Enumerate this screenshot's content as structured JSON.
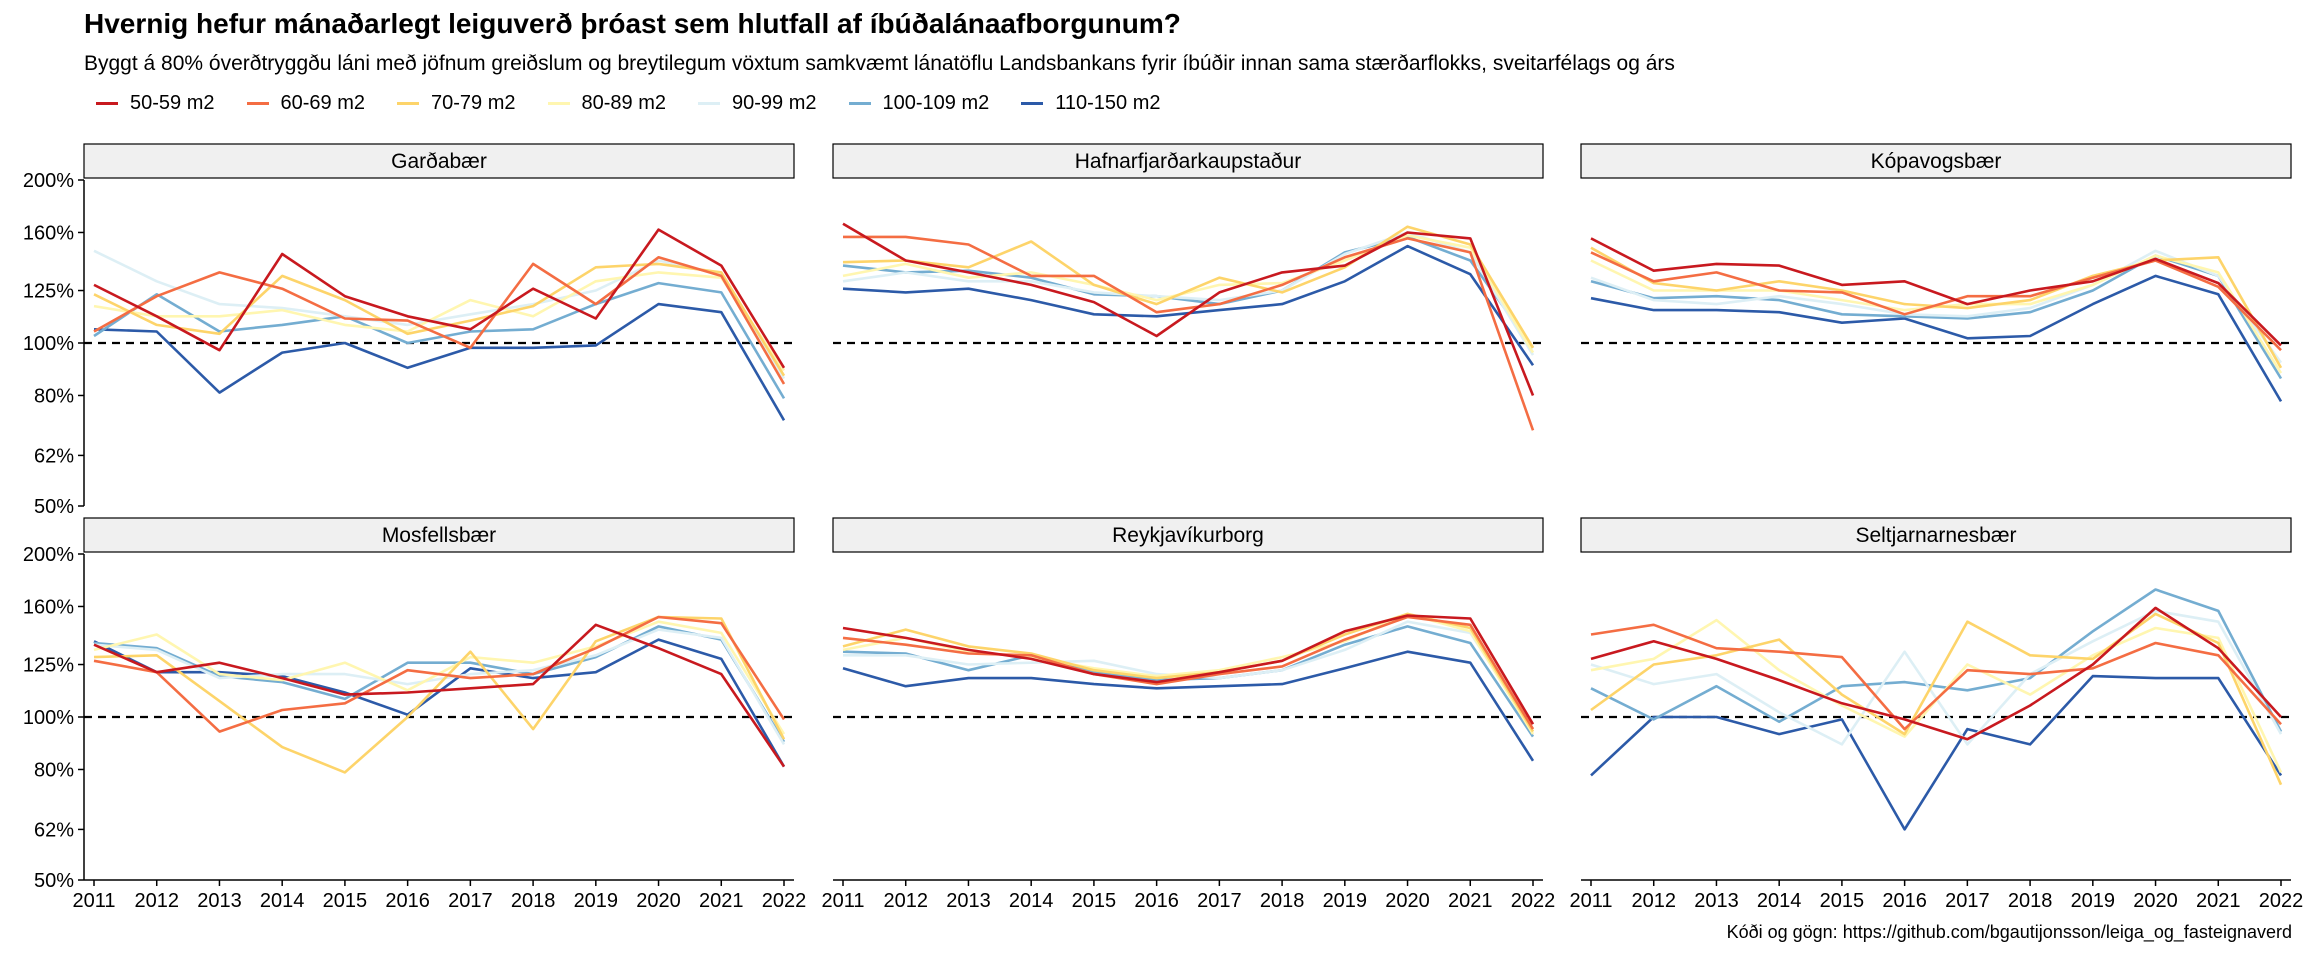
{
  "title": "Hvernig hefur mánaðarlegt leiguverð þróast sem hlutfall af íbúðalánaafborgunum?",
  "subtitle": "Byggt á 80% óverðtryggðu láni með jöfnum greiðslum og breytilegum vöxtum samkvæmt lánatöflu Landsbankans fyrir íbúðir innan sama stærðarflokks, sveitarfélags og árs",
  "caption": "Kóði og gögn: https://github.com/bgautijonsson/leiga_og_fasteignaverd",
  "chart_data": {
    "type": "line",
    "layout": "facet grid 2 rows x 3 columns",
    "x": [
      2011,
      2012,
      2013,
      2014,
      2015,
      2016,
      2017,
      2018,
      2019,
      2020,
      2021,
      2022
    ],
    "y_scale": "log",
    "ylim": [
      0.5,
      2.0
    ],
    "y_ticks": [
      0.5,
      0.62,
      0.8,
      1.0,
      1.25,
      1.6,
      2.0
    ],
    "y_tick_labels": [
      "50%",
      "62%",
      "80%",
      "100%",
      "125%",
      "160%",
      "200%"
    ],
    "reference_line": 1.0,
    "reference_line_style": "dashed",
    "legend_position": "top",
    "series_colors": {
      "50-59 m2": "#c8191f",
      "60-69 m2": "#f46d43",
      "70-79 m2": "#fdd46a",
      "80-89 m2": "#fff6b0",
      "90-99 m2": "#ddeff5",
      "100-109 m2": "#74add1",
      "110-150 m2": "#2c5aa8"
    },
    "panels": [
      {
        "name": "Garðabær",
        "series": [
          {
            "name": "50-59 m2",
            "values": [
              1.28,
              1.12,
              0.97,
              1.46,
              1.22,
              1.12,
              1.06,
              1.26,
              1.11,
              1.62,
              1.39,
              0.9
            ]
          },
          {
            "name": "60-69 m2",
            "values": [
              1.05,
              1.22,
              1.35,
              1.26,
              1.11,
              1.1,
              0.98,
              1.4,
              1.18,
              1.44,
              1.33,
              0.84
            ]
          },
          {
            "name": "70-79 m2",
            "values": [
              1.23,
              1.08,
              1.04,
              1.33,
              1.2,
              1.04,
              1.1,
              1.17,
              1.38,
              1.4,
              1.35,
              0.87
            ]
          },
          {
            "name": "80-89 m2",
            "values": [
              1.17,
              1.12,
              1.12,
              1.15,
              1.08,
              1.05,
              1.2,
              1.12,
              1.3,
              1.35,
              1.32,
              0.89
            ]
          },
          {
            "name": "90-99 m2",
            "values": [
              1.48,
              1.3,
              1.18,
              1.16,
              1.12,
              1.08,
              1.13,
              1.18,
              1.25,
              1.42,
              1.34,
              0.86
            ]
          },
          {
            "name": "100-109 m2",
            "values": [
              1.03,
              1.23,
              1.05,
              1.08,
              1.12,
              1.0,
              1.05,
              1.06,
              1.18,
              1.29,
              1.24,
              0.79
            ]
          },
          {
            "name": "110-150 m2",
            "values": [
              1.06,
              1.05,
              0.81,
              0.96,
              1.0,
              0.9,
              0.98,
              0.98,
              0.99,
              1.18,
              1.14,
              0.72
            ]
          }
        ]
      },
      {
        "name": "Hafnarfjarðarkaupstaður",
        "series": [
          {
            "name": "50-59 m2",
            "values": [
              1.66,
              1.42,
              1.35,
              1.28,
              1.19,
              1.03,
              1.24,
              1.35,
              1.39,
              1.6,
              1.56,
              0.8
            ]
          },
          {
            "name": "60-69 m2",
            "values": [
              1.57,
              1.57,
              1.52,
              1.33,
              1.33,
              1.14,
              1.18,
              1.28,
              1.44,
              1.56,
              1.47,
              0.69
            ]
          },
          {
            "name": "70-79 m2",
            "values": [
              1.41,
              1.42,
              1.38,
              1.54,
              1.28,
              1.18,
              1.32,
              1.24,
              1.38,
              1.64,
              1.52,
              0.98
            ]
          },
          {
            "name": "80-89 m2",
            "values": [
              1.33,
              1.4,
              1.32,
              1.35,
              1.28,
              1.2,
              1.28,
              1.29,
              1.42,
              1.58,
              1.5,
              0.96
            ]
          },
          {
            "name": "90-99 m2",
            "values": [
              1.3,
              1.35,
              1.3,
              1.3,
              1.24,
              1.22,
              1.2,
              1.25,
              1.46,
              1.6,
              1.47,
              0.95
            ]
          },
          {
            "name": "100-109 m2",
            "values": [
              1.39,
              1.35,
              1.36,
              1.32,
              1.23,
              1.22,
              1.18,
              1.25,
              1.47,
              1.57,
              1.42,
              0.98
            ]
          },
          {
            "name": "110-150 m2",
            "values": [
              1.26,
              1.24,
              1.26,
              1.2,
              1.13,
              1.12,
              1.15,
              1.18,
              1.3,
              1.51,
              1.34,
              0.91
            ]
          }
        ]
      },
      {
        "name": "Kópavogsbær",
        "series": [
          {
            "name": "50-59 m2",
            "values": [
              1.56,
              1.36,
              1.4,
              1.39,
              1.28,
              1.3,
              1.18,
              1.25,
              1.3,
              1.43,
              1.29,
              0.99
            ]
          },
          {
            "name": "60-69 m2",
            "values": [
              1.47,
              1.3,
              1.35,
              1.25,
              1.24,
              1.13,
              1.22,
              1.22,
              1.32,
              1.42,
              1.27,
              0.97
            ]
          },
          {
            "name": "70-79 m2",
            "values": [
              1.5,
              1.29,
              1.25,
              1.3,
              1.25,
              1.18,
              1.16,
              1.2,
              1.33,
              1.42,
              1.44,
              0.9
            ]
          },
          {
            "name": "80-89 m2",
            "values": [
              1.42,
              1.25,
              1.25,
              1.25,
              1.2,
              1.15,
              1.18,
              1.18,
              1.28,
              1.45,
              1.35,
              0.88
            ]
          },
          {
            "name": "90-99 m2",
            "values": [
              1.32,
              1.2,
              1.18,
              1.22,
              1.18,
              1.13,
              1.12,
              1.16,
              1.28,
              1.48,
              1.33,
              0.92
            ]
          },
          {
            "name": "100-109 m2",
            "values": [
              1.3,
              1.21,
              1.22,
              1.2,
              1.13,
              1.12,
              1.11,
              1.14,
              1.25,
              1.45,
              1.33,
              0.86
            ]
          },
          {
            "name": "110-150 m2",
            "values": [
              1.21,
              1.15,
              1.15,
              1.14,
              1.09,
              1.11,
              1.02,
              1.03,
              1.18,
              1.33,
              1.23,
              0.78
            ]
          }
        ]
      },
      {
        "name": "Mosfellsbær",
        "series": [
          {
            "name": "50-59 m2",
            "values": [
              1.36,
              1.21,
              1.26,
              1.18,
              1.1,
              1.11,
              1.13,
              1.15,
              1.48,
              1.34,
              1.2,
              0.81
            ]
          },
          {
            "name": "60-69 m2",
            "values": [
              1.27,
              1.21,
              0.94,
              1.03,
              1.06,
              1.22,
              1.18,
              1.2,
              1.34,
              1.53,
              1.49,
              0.99
            ]
          },
          {
            "name": "70-79 m2",
            "values": [
              1.29,
              1.3,
              1.07,
              0.88,
              0.79,
              1.0,
              1.32,
              0.95,
              1.38,
              1.53,
              1.52,
              0.91
            ]
          },
          {
            "name": "80-89 m2",
            "values": [
              1.33,
              1.42,
              1.2,
              1.17,
              1.26,
              1.12,
              1.29,
              1.26,
              1.35,
              1.5,
              1.43,
              0.93
            ]
          },
          {
            "name": "90-99 m2",
            "values": [
              1.36,
              1.33,
              1.18,
              1.2,
              1.2,
              1.15,
              1.2,
              1.22,
              1.3,
              1.45,
              1.4,
              0.89
            ]
          },
          {
            "name": "100-109 m2",
            "values": [
              1.37,
              1.34,
              1.19,
              1.16,
              1.08,
              1.26,
              1.26,
              1.2,
              1.29,
              1.47,
              1.39,
              0.9
            ]
          },
          {
            "name": "110-150 m2",
            "values": [
              1.38,
              1.21,
              1.21,
              1.19,
              1.11,
              1.01,
              1.23,
              1.18,
              1.21,
              1.39,
              1.28,
              0.81
            ]
          }
        ]
      },
      {
        "name": "Reykjavíkurborg",
        "series": [
          {
            "name": "50-59 m2",
            "values": [
              1.46,
              1.4,
              1.33,
              1.28,
              1.2,
              1.16,
              1.21,
              1.27,
              1.44,
              1.54,
              1.52,
              0.97
            ]
          },
          {
            "name": "60-69 m2",
            "values": [
              1.4,
              1.36,
              1.31,
              1.3,
              1.2,
              1.15,
              1.2,
              1.24,
              1.39,
              1.53,
              1.48,
              0.95
            ]
          },
          {
            "name": "70-79 m2",
            "values": [
              1.35,
              1.45,
              1.35,
              1.31,
              1.22,
              1.18,
              1.21,
              1.27,
              1.42,
              1.55,
              1.46,
              0.94
            ]
          },
          {
            "name": "80-89 m2",
            "values": [
              1.33,
              1.4,
              1.32,
              1.29,
              1.23,
              1.19,
              1.22,
              1.29,
              1.38,
              1.55,
              1.44,
              0.93
            ]
          },
          {
            "name": "90-99 m2",
            "values": [
              1.3,
              1.3,
              1.25,
              1.26,
              1.27,
              1.2,
              1.18,
              1.22,
              1.33,
              1.5,
              1.43,
              0.95
            ]
          },
          {
            "name": "100-109 m2",
            "values": [
              1.32,
              1.31,
              1.22,
              1.3,
              1.21,
              1.17,
              1.18,
              1.22,
              1.36,
              1.47,
              1.37,
              0.92
            ]
          },
          {
            "name": "110-150 m2",
            "values": [
              1.23,
              1.14,
              1.18,
              1.18,
              1.15,
              1.13,
              1.14,
              1.15,
              1.23,
              1.32,
              1.26,
              0.83
            ]
          }
        ]
      },
      {
        "name": "Seltjarnarnesbær",
        "series": [
          {
            "name": "50-59 m2",
            "values": [
              1.28,
              1.38,
              1.28,
              1.17,
              1.06,
              0.99,
              0.91,
              1.05,
              1.25,
              1.59,
              1.34,
              1.0
            ]
          },
          {
            "name": "60-69 m2",
            "values": [
              1.42,
              1.48,
              1.34,
              1.32,
              1.29,
              0.95,
              1.22,
              1.2,
              1.23,
              1.37,
              1.3,
              0.97
            ]
          },
          {
            "name": "70-79 m2",
            "values": [
              1.03,
              1.25,
              1.3,
              1.39,
              1.1,
              0.93,
              1.5,
              1.3,
              1.28,
              1.55,
              1.37,
              0.75
            ]
          },
          {
            "name": "80-89 m2",
            "values": [
              1.22,
              1.28,
              1.51,
              1.22,
              1.05,
              0.92,
              1.25,
              1.1,
              1.3,
              1.46,
              1.4,
              0.79
            ]
          },
          {
            "name": "90-99 m2",
            "values": [
              1.25,
              1.15,
              1.2,
              1.02,
              0.89,
              1.32,
              0.89,
              1.2,
              1.38,
              1.57,
              1.5,
              0.93
            ]
          },
          {
            "name": "100-109 m2",
            "values": [
              1.13,
              0.99,
              1.14,
              0.98,
              1.14,
              1.16,
              1.12,
              1.18,
              1.44,
              1.72,
              1.57,
              0.94
            ]
          },
          {
            "name": "110-150 m2",
            "values": [
              0.78,
              1.0,
              1.0,
              0.93,
              0.99,
              0.62,
              0.95,
              0.89,
              1.19,
              1.18,
              1.18,
              0.78
            ]
          }
        ]
      }
    ]
  }
}
